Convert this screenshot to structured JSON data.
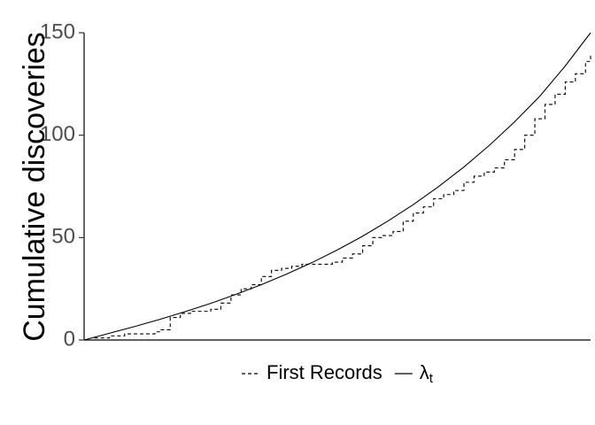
{
  "chart_data": {
    "type": "line",
    "title": "",
    "xlabel": "",
    "ylabel": "Cumulative discoveries",
    "xlim": [
      0,
      100
    ],
    "ylim": [
      0,
      150
    ],
    "y_ticks": [
      "0",
      "50",
      "100",
      "150"
    ],
    "grid": false,
    "legend_position": "bottom",
    "series": [
      {
        "name": "First Records",
        "style": "dashed",
        "color": "#000000",
        "x": [
          0,
          2,
          5,
          8,
          10,
          12,
          14,
          15,
          17,
          19,
          21,
          23,
          25,
          27,
          29,
          31,
          33,
          35,
          37,
          39,
          41,
          43,
          45,
          47,
          49,
          51,
          53,
          55,
          57,
          59,
          61,
          63,
          65,
          67,
          69,
          71,
          73,
          75,
          77,
          79,
          81,
          83,
          85,
          87,
          89,
          91,
          93,
          95,
          97,
          99,
          100
        ],
        "y": [
          0,
          1,
          2,
          3,
          3,
          3,
          4,
          5,
          11,
          13,
          14,
          14,
          15,
          18,
          22,
          25,
          27,
          31,
          34,
          35,
          36,
          37,
          37,
          37,
          38,
          40,
          42,
          46,
          50,
          51,
          53,
          58,
          62,
          65,
          69,
          71,
          73,
          77,
          80,
          82,
          84,
          88,
          93,
          100,
          108,
          115,
          120,
          126,
          130,
          136,
          140
        ]
      },
      {
        "name": "λt",
        "style": "solid",
        "color": "#000000",
        "x": [
          0,
          5,
          10,
          15,
          20,
          25,
          30,
          35,
          40,
          45,
          50,
          55,
          60,
          65,
          70,
          75,
          80,
          85,
          90,
          95,
          100
        ],
        "y": [
          0,
          3.3,
          6.6,
          10.1,
          13.9,
          17.9,
          22.3,
          27.0,
          32.2,
          37.8,
          44.0,
          50.7,
          58.1,
          66.1,
          74.9,
          84.5,
          95.0,
          106.5,
          119.1,
          133.8,
          150
        ]
      }
    ]
  }
}
